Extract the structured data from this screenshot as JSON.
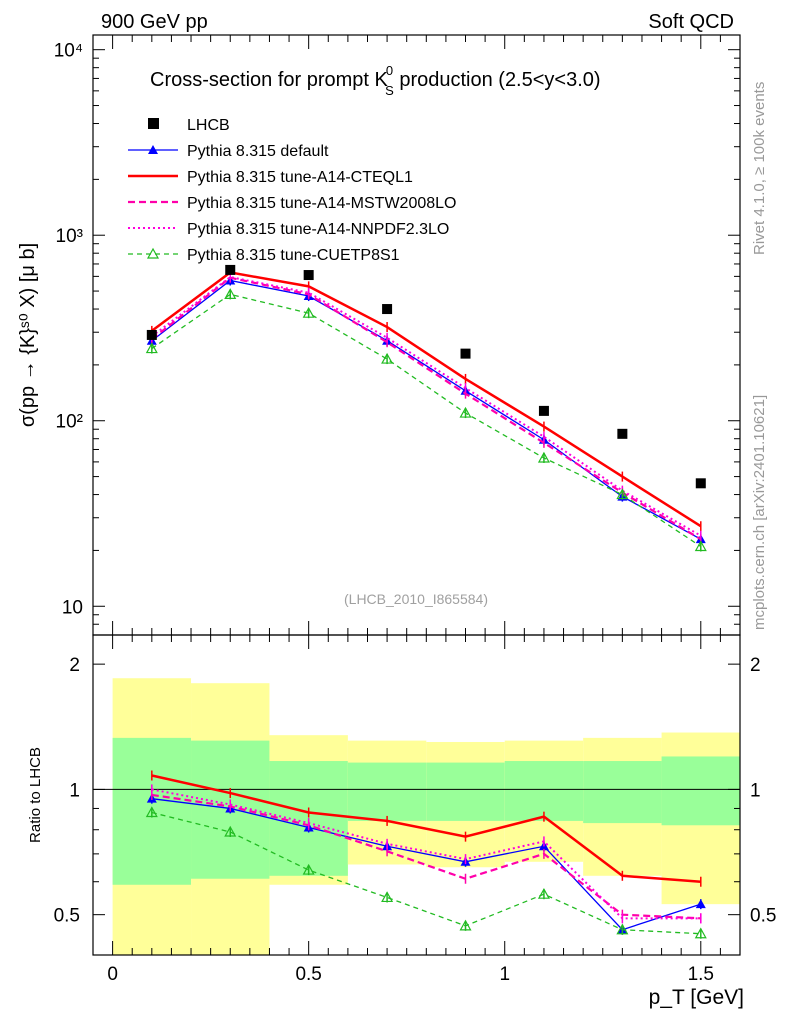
{
  "header": {
    "left": "900 GeV pp",
    "right": "Soft QCD"
  },
  "title": {
    "prefix": "Cross-section for prompt K",
    "sup": "0",
    "sub": "S",
    "suffix": " production (2.5<y<3.0)"
  },
  "analysis_id": "(LHCB_2010_I865584)",
  "side_labels": {
    "rivet": "Rivet 4.1.0, ≥ 100k events",
    "mcplots": "mcplots.cern.ch [arXiv:2401.10621]"
  },
  "axes": {
    "ylabel_main": "σ(pp → {K}ˢ⁰ X) [μ b]",
    "ylabel_ratio": "Ratio to LHCB",
    "xlabel": "p_T [GeV]",
    "main_ticks": [
      "10",
      "10²",
      "10³",
      "10⁴"
    ],
    "ratio_ticks": [
      "0.5",
      "1",
      "2"
    ],
    "x_ticks": [
      "0",
      "0.5",
      "1",
      "1.5"
    ]
  },
  "chart_data": {
    "type": "line",
    "x": [
      0.1,
      0.3,
      0.5,
      0.7,
      0.9,
      1.1,
      1.3,
      1.5
    ],
    "xlim": [
      -0.05,
      1.6
    ],
    "ylim_main": [
      7,
      12000
    ],
    "ylim_ratio": [
      0.4,
      2.35
    ],
    "reference": {
      "name": "LHCB",
      "color": "#000000",
      "values": [
        290,
        650,
        610,
        400,
        230,
        113,
        85,
        46
      ]
    },
    "bands": [
      {
        "xmin": 0.0,
        "xmax": 0.2,
        "green": [
          0.59,
          1.33
        ],
        "yellow": [
          0.37,
          1.85
        ]
      },
      {
        "xmin": 0.2,
        "xmax": 0.4,
        "green": [
          0.61,
          1.31
        ],
        "yellow": [
          0.38,
          1.8
        ]
      },
      {
        "xmin": 0.4,
        "xmax": 0.6,
        "green": [
          0.62,
          1.17
        ],
        "yellow": [
          0.59,
          1.35
        ]
      },
      {
        "xmin": 0.6,
        "xmax": 0.8,
        "green": [
          0.84,
          1.16
        ],
        "yellow": [
          0.66,
          1.31
        ]
      },
      {
        "xmin": 0.8,
        "xmax": 1.0,
        "green": [
          0.84,
          1.16
        ],
        "yellow": [
          0.65,
          1.3
        ]
      },
      {
        "xmin": 1.0,
        "xmax": 1.2,
        "green": [
          0.84,
          1.17
        ],
        "yellow": [
          0.67,
          1.31
        ]
      },
      {
        "xmin": 1.2,
        "xmax": 1.4,
        "green": [
          0.83,
          1.17
        ],
        "yellow": [
          0.62,
          1.33
        ]
      },
      {
        "xmin": 1.4,
        "xmax": 1.6,
        "green": [
          0.82,
          1.2
        ],
        "yellow": [
          0.53,
          1.37
        ]
      }
    ],
    "series": [
      {
        "name": "Pythia 8.315 default",
        "color": "#0000ff",
        "dash": "",
        "width": 1.3,
        "marker": "triangle-filled",
        "values": [
          270,
          570,
          470,
          270,
          145,
          79,
          39,
          23
        ],
        "ratio": [
          0.95,
          0.9,
          0.81,
          0.73,
          0.67,
          0.73,
          0.46,
          0.53
        ]
      },
      {
        "name": "Pythia 8.315 tune-A14-CTEQL1",
        "color": "#ff0000",
        "dash": "",
        "width": 2.5,
        "marker": "none",
        "values": [
          305,
          630,
          530,
          320,
          168,
          93,
          50,
          27
        ],
        "ratio": [
          1.08,
          0.98,
          0.88,
          0.84,
          0.77,
          0.86,
          0.62,
          0.6
        ]
      },
      {
        "name": "Pythia 8.315 tune-A14-MSTW2008LO",
        "color": "#ff00aa",
        "dash": "7,4",
        "width": 2.2,
        "marker": "none",
        "values": [
          275,
          590,
          480,
          265,
          140,
          76,
          41,
          23
        ],
        "ratio": [
          0.97,
          0.91,
          0.82,
          0.71,
          0.61,
          0.7,
          0.5,
          0.49
        ]
      },
      {
        "name": "Pythia 8.315 tune-A14-NNPDF2.3LO",
        "color": "#ff00dd",
        "dash": "2,3",
        "width": 2.0,
        "marker": "none",
        "values": [
          285,
          595,
          490,
          280,
          150,
          82,
          42,
          24
        ],
        "ratio": [
          1.0,
          0.92,
          0.83,
          0.74,
          0.68,
          0.75,
          0.49,
          0.49
        ]
      },
      {
        "name": "Pythia 8.315 tune-CUETP8S1",
        "color": "#22bb22",
        "dash": "5,4",
        "width": 1.3,
        "marker": "triangle-open",
        "values": [
          245,
          480,
          380,
          215,
          110,
          63,
          40,
          21
        ],
        "ratio": [
          0.88,
          0.79,
          0.64,
          0.55,
          0.47,
          0.56,
          0.46,
          0.45
        ]
      }
    ]
  }
}
